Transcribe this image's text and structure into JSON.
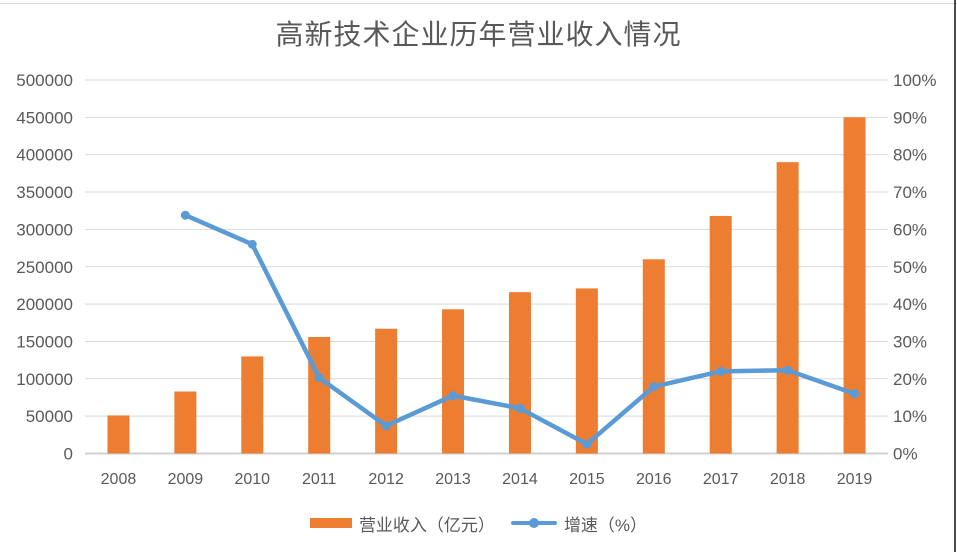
{
  "page": {
    "background": "#ffffff",
    "top_border_color": "#d9d9d9",
    "right_border_color": "#4d4d4d"
  },
  "chart_data": {
    "type": "bar+line combo",
    "title": "高新技术企业历年营业收入情况",
    "categories": [
      "2008",
      "2009",
      "2010",
      "2011",
      "2012",
      "2013",
      "2014",
      "2015",
      "2016",
      "2017",
      "2018",
      "2019"
    ],
    "series": [
      {
        "name": "营业收入（亿元）",
        "type": "bar",
        "axis": "left",
        "color": "#ED7D31",
        "values": [
          51000,
          83000,
          130000,
          156000,
          167000,
          193000,
          216000,
          221000,
          260000,
          318000,
          390000,
          450000
        ]
      },
      {
        "name": "增速（%）",
        "type": "line",
        "axis": "right",
        "color": "#5B9BD5",
        "values": [
          null,
          63.8,
          56,
          20.3,
          7.4,
          15.5,
          12.1,
          2.5,
          17.9,
          22,
          22.3,
          16
        ]
      }
    ],
    "left_axis": {
      "min": 0,
      "max": 500000,
      "step": 50000,
      "tick_labels": [
        "0",
        "50000",
        "100000",
        "150000",
        "200000",
        "250000",
        "300000",
        "350000",
        "400000",
        "450000",
        "500000"
      ]
    },
    "right_axis": {
      "min": 0,
      "max": 100,
      "step": 10,
      "tick_labels": [
        "0%",
        "10%",
        "20%",
        "30%",
        "40%",
        "50%",
        "60%",
        "70%",
        "80%",
        "90%",
        "100%"
      ]
    },
    "grid": "horizontal",
    "gridline_color": "#d9d9d9",
    "axis_line_color": "#d0d0d0",
    "axis_label_color": "#595959",
    "legend_position": "bottom"
  },
  "legend": {
    "items": [
      {
        "label": "营业收入（亿元）",
        "swatch": "bar",
        "color": "#ED7D31"
      },
      {
        "label": "增速（%）",
        "swatch": "line-dot",
        "color": "#5B9BD5"
      }
    ]
  }
}
